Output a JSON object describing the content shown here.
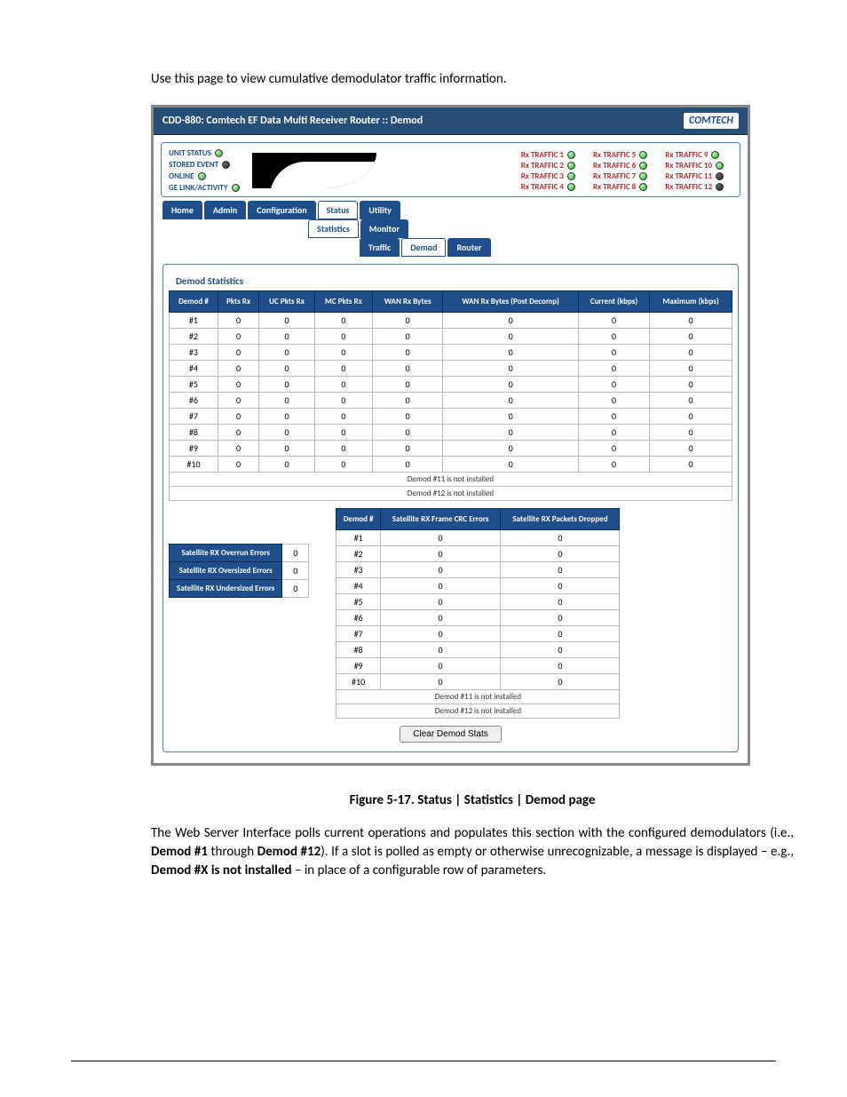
{
  "intro": "Use this page to view cumulative demodulator traffic information.",
  "title": "CDD-880: Comtech EF Data Multi Receiver Router :: Demod",
  "logo": "COMTECH",
  "status_left": [
    {
      "label": "UNIT STATUS",
      "led": "led-green"
    },
    {
      "label": "STORED EVENT",
      "led": "led-dark"
    },
    {
      "label": "ONLINE",
      "led": "led-green"
    },
    {
      "label": "GE LINK/ACTIVITY",
      "led": "led-green"
    }
  ],
  "traffic_labels": {
    "c1": [
      "Rx TRAFFIC 1",
      "Rx TRAFFIC 2",
      "Rx TRAFFIC 3",
      "Rx TRAFFIC 4"
    ],
    "c2": [
      "Rx TRAFFIC 5",
      "Rx TRAFFIC 6",
      "Rx TRAFFIC 7",
      "Rx TRAFFIC 8"
    ],
    "c3": [
      "Rx TRAFFIC 9",
      "Rx TRAFFIC 10",
      "Rx TRAFFIC 11",
      "Rx TRAFFIC 12"
    ]
  },
  "traffic_leds": {
    "c1": [
      "led-green",
      "led-green",
      "led-green",
      "led-green"
    ],
    "c2": [
      "led-green",
      "led-green",
      "led-green",
      "led-green"
    ],
    "c3": [
      "led-green",
      "led-green",
      "led-dark",
      "led-dark"
    ]
  },
  "tabs": {
    "main": [
      "Home",
      "Admin",
      "Configuration",
      "Status",
      "Utility"
    ],
    "main_styles": [
      "tab-blue",
      "tab-blue",
      "tab-blue",
      "tab-white",
      "tab-blue"
    ],
    "sub": [
      "Statistics",
      "Monitor"
    ],
    "sub_styles": [
      "tab-white",
      "tab-blue"
    ],
    "sub2": [
      "Traffic",
      "Demod",
      "Router"
    ],
    "sub2_styles": [
      "tab-blue",
      "tab-white",
      "tab-blue"
    ]
  },
  "fieldset_title": "Demod Statistics",
  "main_headers": [
    "Demod #",
    "Pkts Rx",
    "UC Pkts Rx",
    "MC Pkts Rx",
    "WAN Rx Bytes",
    "WAN Rx Bytes (Post Decomp)",
    "Current (kbps)",
    "Maximum (kbps)"
  ],
  "main_rows": [
    [
      "#1",
      "0",
      "0",
      "0",
      "0",
      "0",
      "0",
      "0"
    ],
    [
      "#2",
      "0",
      "0",
      "0",
      "0",
      "0",
      "0",
      "0"
    ],
    [
      "#3",
      "0",
      "0",
      "0",
      "0",
      "0",
      "0",
      "0"
    ],
    [
      "#4",
      "0",
      "0",
      "0",
      "0",
      "0",
      "0",
      "0"
    ],
    [
      "#5",
      "0",
      "0",
      "0",
      "0",
      "0",
      "0",
      "0"
    ],
    [
      "#6",
      "0",
      "0",
      "0",
      "0",
      "0",
      "0",
      "0"
    ],
    [
      "#7",
      "0",
      "0",
      "0",
      "0",
      "0",
      "0",
      "0"
    ],
    [
      "#8",
      "0",
      "0",
      "0",
      "0",
      "0",
      "0",
      "0"
    ],
    [
      "#9",
      "0",
      "0",
      "0",
      "0",
      "0",
      "0",
      "0"
    ],
    [
      "#10",
      "0",
      "0",
      "0",
      "0",
      "0",
      "0",
      "0"
    ]
  ],
  "main_msgs": [
    "Demod #11 is not installed",
    "Demod #12 is not installed"
  ],
  "err_summary": [
    {
      "label": "Satellite RX Overrun Errors",
      "val": "0"
    },
    {
      "label": "Satellite RX Oversized Errors",
      "val": "0"
    },
    {
      "label": "Satellite RX Undersized Errors",
      "val": "0"
    }
  ],
  "crc_headers": [
    "Demod #",
    "Satellite RX Frame CRC Errors",
    "Satellite RX Packets Dropped"
  ],
  "crc_rows": [
    [
      "#1",
      "0",
      "0"
    ],
    [
      "#2",
      "0",
      "0"
    ],
    [
      "#3",
      "0",
      "0"
    ],
    [
      "#4",
      "0",
      "0"
    ],
    [
      "#5",
      "0",
      "0"
    ],
    [
      "#6",
      "0",
      "0"
    ],
    [
      "#7",
      "0",
      "0"
    ],
    [
      "#8",
      "0",
      "0"
    ],
    [
      "#9",
      "0",
      "0"
    ],
    [
      "#10",
      "0",
      "0"
    ]
  ],
  "crc_msgs": [
    "Demod #11 is not installed",
    "Demod #12 is not installed"
  ],
  "clear_btn": "Clear Demod Stats",
  "caption": "Figure 5-17. Status | Statistics | Demod page",
  "para_plain": "The Web Server Interface polls current operations and populates this section with the configured demodulators (i.e., ",
  "para_b1": "Demod #1",
  "para_mid1": " through ",
  "para_b2": "Demod #12",
  "para_mid2": "). If a slot is polled as empty or otherwise unrecognizable, a message is displayed – e.g., ",
  "para_b3": "Demod #X is not installed",
  "para_end": " – in place of a configurable row of parameters."
}
